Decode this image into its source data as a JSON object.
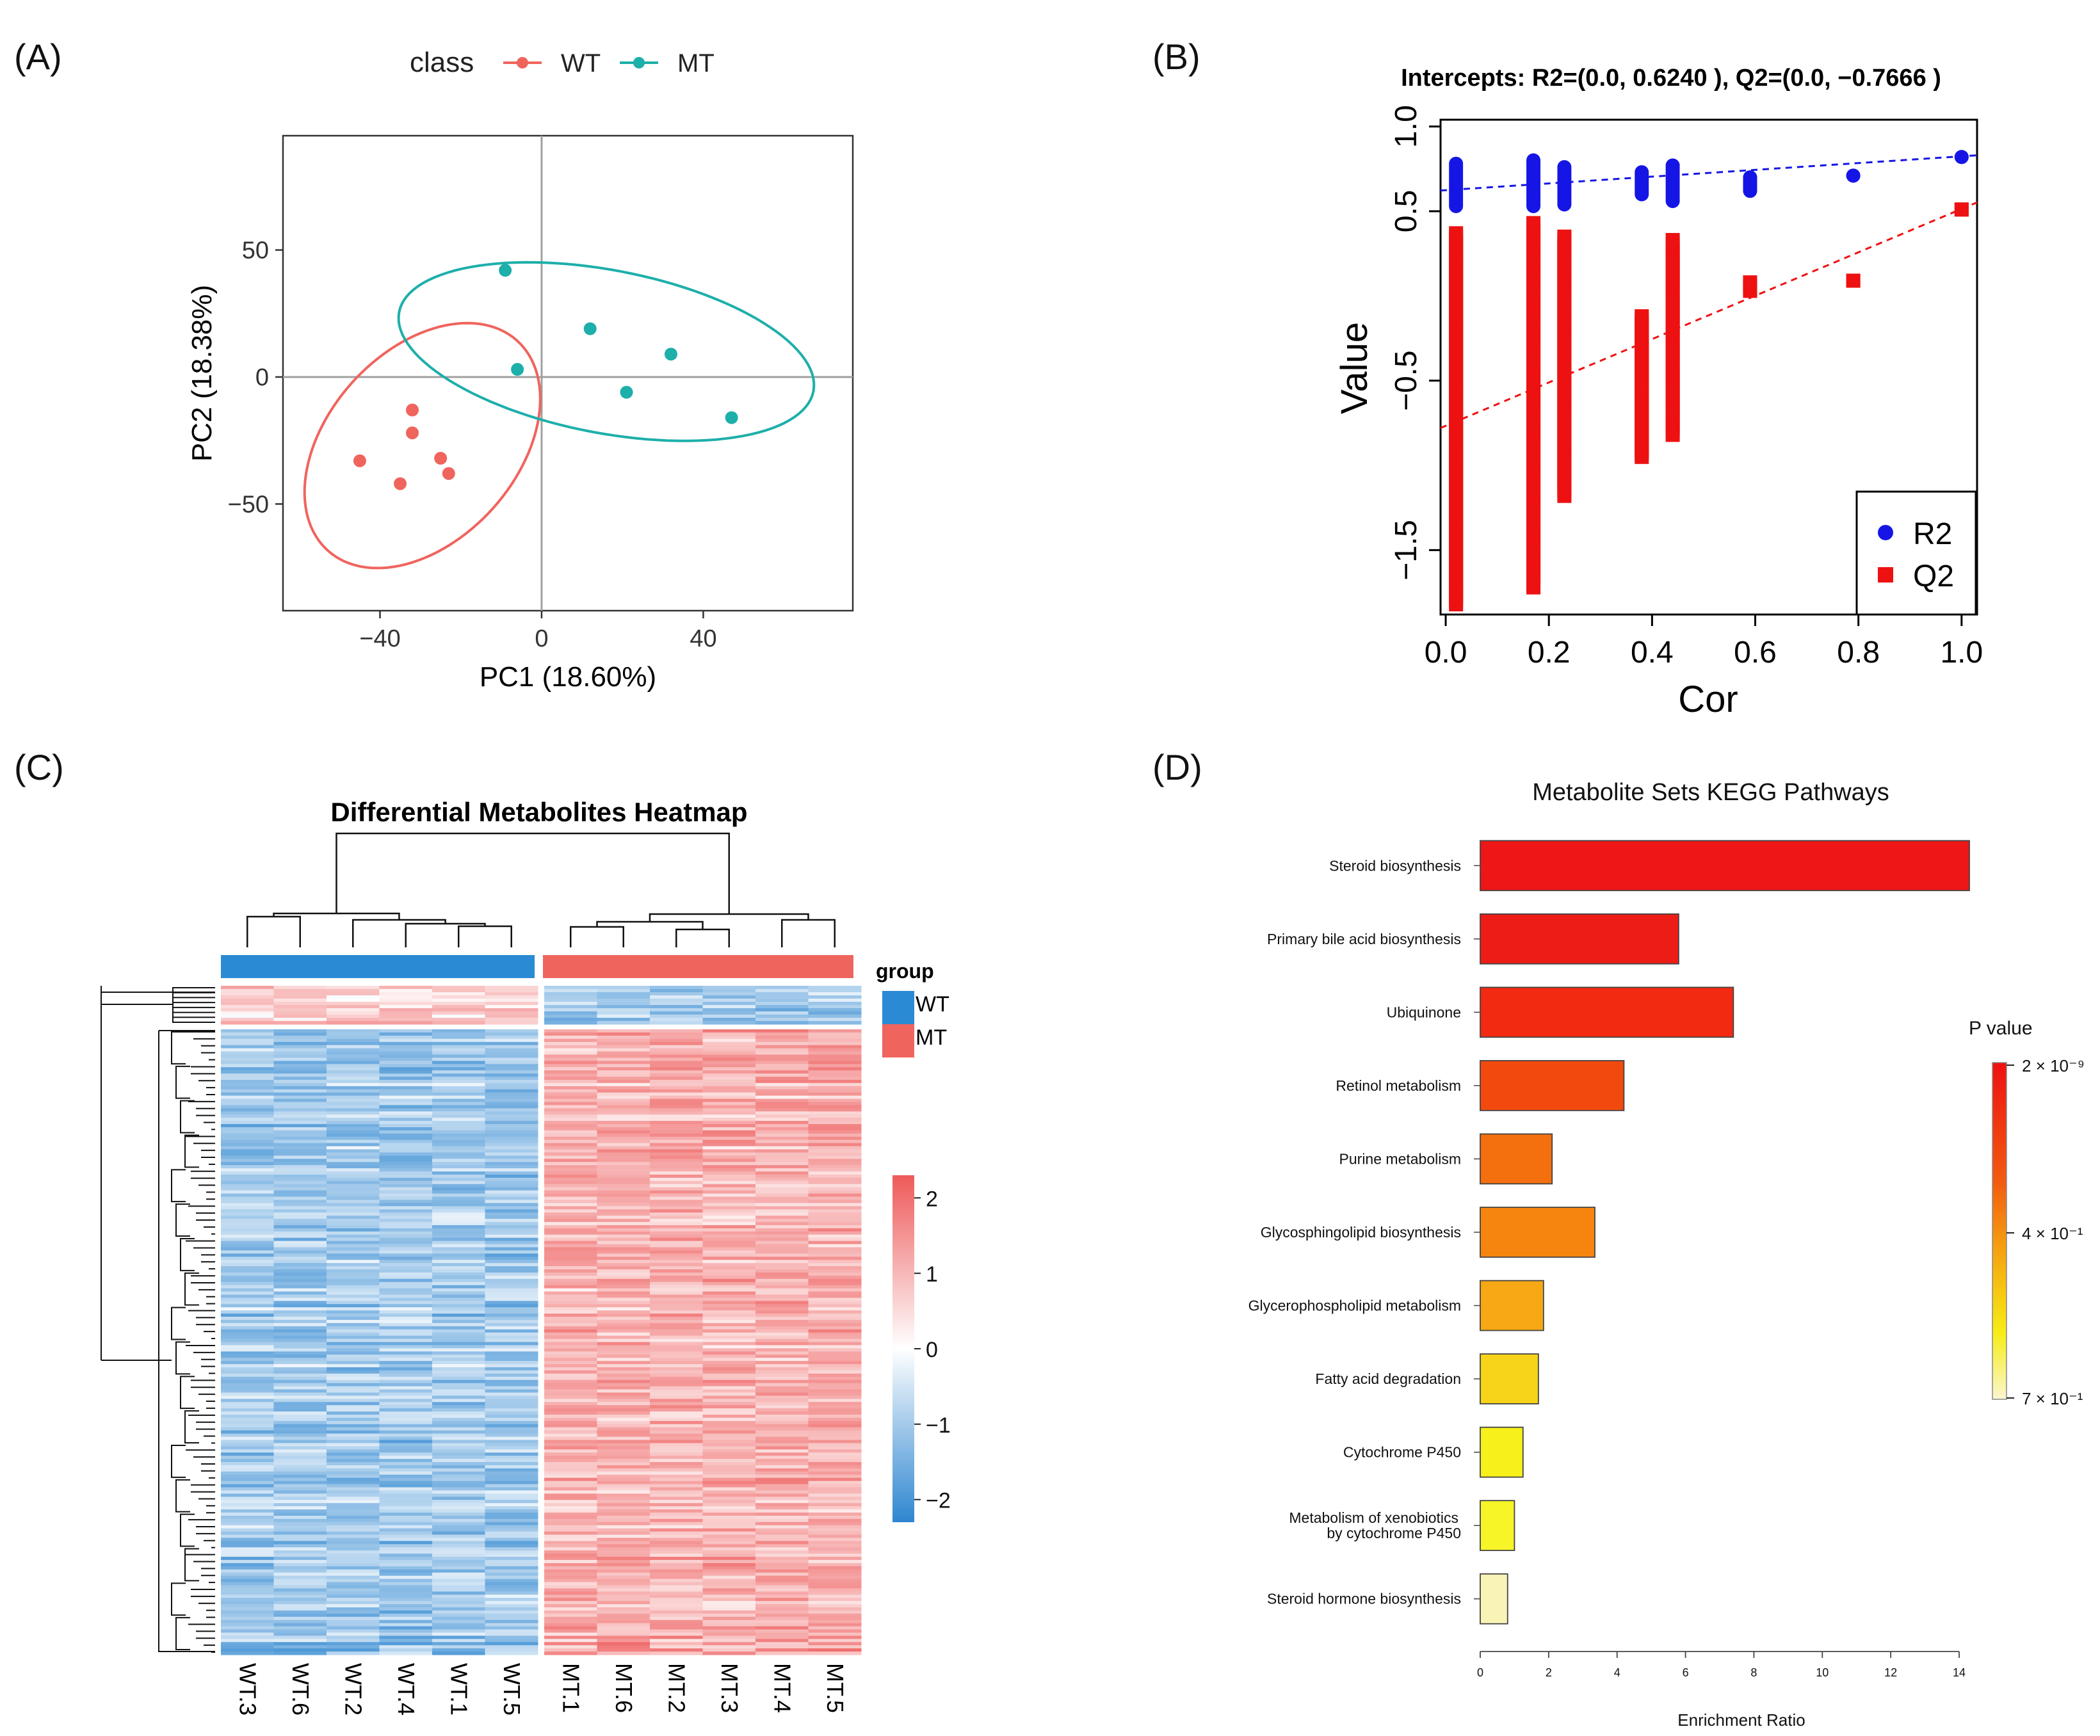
{
  "panels": {
    "a": {
      "label": "(A)"
    },
    "b": {
      "label": "(B)"
    },
    "c": {
      "label": "(C)"
    },
    "d": {
      "label": "(D)"
    }
  },
  "colors": {
    "wt": "#F0645E",
    "mt": "#1DAFAA",
    "r2": "#1515E6",
    "q2": "#EE1111",
    "group_wt": "#2A8AD4",
    "group_mt": "#F0645E",
    "heat_low": "#2E86D0",
    "heat_mid": "#FFFFFF",
    "heat_high": "#EE5A5A"
  },
  "chart_data": [
    {
      "panel": "A",
      "type": "scatter",
      "xlabel": "PC1 (18.60%)",
      "ylabel": "PC2 (18.38%)",
      "xlim": [
        -64,
        77
      ],
      "ylim": [
        -92,
        95
      ],
      "xticks": [
        -40,
        0,
        40
      ],
      "xtick_labels": [
        "−40",
        "0",
        "40"
      ],
      "yticks": [
        -50,
        0,
        50
      ],
      "ytick_labels": [
        "−50",
        "0",
        "50"
      ],
      "legend_title": "class",
      "series": [
        {
          "name": "WT",
          "points": [
            [
              -45,
              -33
            ],
            [
              -35,
              -42
            ],
            [
              -32,
              -13
            ],
            [
              -32,
              -22
            ],
            [
              -25,
              -32
            ],
            [
              -23,
              -38
            ]
          ],
          "ellipse": {
            "cx": -29.5,
            "cy": -27,
            "rx": 50,
            "ry": 26,
            "angle_deg": 72
          }
        },
        {
          "name": "MT",
          "points": [
            [
              -9,
              42
            ],
            [
              -6,
              3
            ],
            [
              12,
              19
            ],
            [
              21,
              -6
            ],
            [
              32,
              9
            ],
            [
              47,
              -16
            ]
          ],
          "ellipse": {
            "cx": 16,
            "cy": 10,
            "rx": 54,
            "ry": 31,
            "angle_deg": -22
          }
        }
      ]
    },
    {
      "panel": "B",
      "type": "scatter",
      "title": "Intercepts: R2=(0.0, 0.6240 ), Q2=(0.0, −0.7666 )",
      "xlabel": "Cor",
      "ylabel": "Value",
      "xlim": [
        -0.01,
        1.03
      ],
      "ylim": [
        -1.88,
        1.04
      ],
      "xticks": [
        0.0,
        0.2,
        0.4,
        0.6,
        0.8,
        1.0
      ],
      "xtick_labels": [
        "0.0",
        "0.2",
        "0.4",
        "0.6",
        "0.8",
        "1.0"
      ],
      "yticks": [
        1.0,
        0.5,
        -0.5,
        -1.5
      ],
      "ytick_labels": [
        "1.0",
        "0.5",
        "−0.5",
        "−1.5"
      ],
      "series": [
        {
          "name": "R2",
          "marker": "circle",
          "columns": [
            {
              "x": 0.02,
              "ymin": 0.53,
              "ymax": 0.78
            },
            {
              "x": 0.17,
              "ymin": 0.53,
              "ymax": 0.8
            },
            {
              "x": 0.23,
              "ymin": 0.54,
              "ymax": 0.76
            },
            {
              "x": 0.38,
              "ymin": 0.6,
              "ymax": 0.73
            },
            {
              "x": 0.44,
              "ymin": 0.56,
              "ymax": 0.77
            },
            {
              "x": 0.59,
              "ymin": 0.62,
              "ymax": 0.7
            },
            {
              "x": 0.79,
              "ymin": 0.71,
              "ymax": 0.71
            },
            {
              "x": 1.0,
              "ymin": 0.82,
              "ymax": 0.82
            }
          ],
          "fit": {
            "intercept": 0.624,
            "slope": 0.2
          }
        },
        {
          "name": "Q2",
          "marker": "square",
          "columns": [
            {
              "x": 0.02,
              "ymin": -1.82,
              "ymax": 0.37
            },
            {
              "x": 0.17,
              "ymin": -1.72,
              "ymax": 0.43
            },
            {
              "x": 0.23,
              "ymin": -1.18,
              "ymax": 0.35
            },
            {
              "x": 0.38,
              "ymin": -0.95,
              "ymax": -0.12
            },
            {
              "x": 0.44,
              "ymin": -0.82,
              "ymax": 0.33
            },
            {
              "x": 0.59,
              "ymin": 0.03,
              "ymax": 0.08
            },
            {
              "x": 0.79,
              "ymin": 0.09,
              "ymax": 0.09
            },
            {
              "x": 1.0,
              "ymin": 0.51,
              "ymax": 0.51
            }
          ],
          "fit": {
            "intercept": -0.7666,
            "slope": 1.28
          }
        }
      ]
    },
    {
      "panel": "C",
      "type": "heatmap",
      "title": "Differential Metabolites Heatmap",
      "columns": [
        "WT.3",
        "WT.6",
        "WT.2",
        "WT.4",
        "WT.1",
        "WT.5",
        "MT.1",
        "MT.6",
        "MT.2",
        "MT.3",
        "MT.4",
        "MT.5"
      ],
      "groups": [
        "WT",
        "WT",
        "WT",
        "WT",
        "WT",
        "WT",
        "MT",
        "MT",
        "MT",
        "MT",
        "MT",
        "MT"
      ],
      "legend_title": "group",
      "legend_items": [
        "WT",
        "MT"
      ],
      "color_range": [
        -2.3,
        2.3
      ],
      "scale_ticks": [
        2,
        1,
        0,
        -1,
        -2
      ],
      "scale_tick_labels": [
        "2",
        "1",
        "0",
        "−1",
        "−2"
      ],
      "row_count": 210,
      "small_cluster_rows": 12,
      "wt_cluster_mean": 0.5,
      "wt_main_mean": -1.0,
      "mt_cluster_mean": -0.9,
      "mt_main_mean": 1.05
    },
    {
      "panel": "D",
      "type": "bar",
      "orientation": "horizontal",
      "title": "Metabolite Sets KEGG Pathways",
      "xlabel": "Enrichment Ratio",
      "xlim": [
        0,
        14
      ],
      "xticks": [
        0,
        2,
        4,
        6,
        8,
        10,
        12,
        14
      ],
      "categories": [
        "Steroid biosynthesis",
        "Primary bile acid biosynthesis",
        "Ubiquinone",
        "Retinol metabolism",
        "Purine metabolism",
        "Glycosphingolipid biosynthesis",
        "Glycerophospholipid metabolism",
        "Fatty acid degradation",
        "Cytochrome P450",
        "Metabolism of xenobiotics|by cytochrome P450",
        "Steroid hormone biosynthesis"
      ],
      "values": [
        14.3,
        5.8,
        7.4,
        4.2,
        2.1,
        3.35,
        1.85,
        1.7,
        1.25,
        1.0,
        0.8
      ],
      "bar_colors": [
        "#EE1616",
        "#EE1C16",
        "#F22A12",
        "#F24A0E",
        "#F4700E",
        "#F5850E",
        "#F7A814",
        "#F7D41A",
        "#F7F01A",
        "#F7F428",
        "#F9F3B6"
      ],
      "colorbar_title": "P value",
      "colorbar_labels": [
        "2 × 10⁻⁹",
        "4 × 10⁻¹",
        "7 × 10⁻¹"
      ]
    }
  ]
}
